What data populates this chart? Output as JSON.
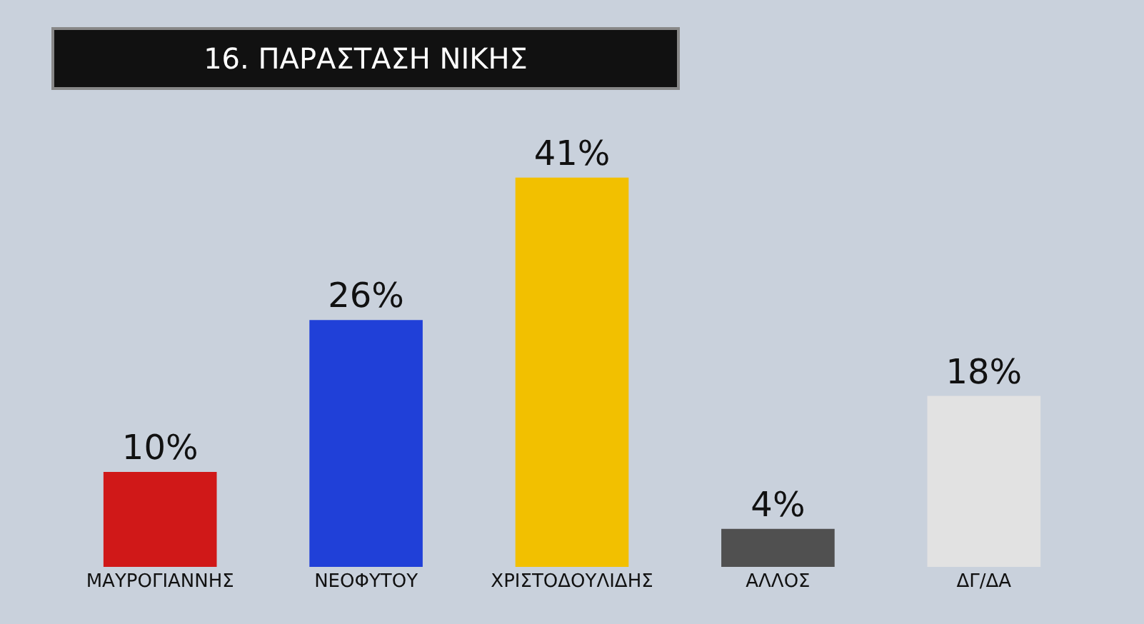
{
  "chart_data": {
    "type": "bar",
    "title": "16. ΠΑΡΑΣΤΑΣΗ ΝΙΚΗΣ",
    "categories": [
      "ΜΑΥΡΟΓΙΑΝΝΗΣ",
      "ΝΕΟΦΥΤΟΥ",
      "ΧΡΙΣΤΟΔΟΥΛΙΔΗΣ",
      "ΑΛΛΟΣ",
      "ΔΓ/ΔΑ"
    ],
    "values": [
      10,
      26,
      41,
      4,
      18
    ],
    "colors": [
      "#d01818",
      "#2040d8",
      "#f2c000",
      "#505050",
      "#e2e2e2"
    ],
    "value_labels": [
      "10%",
      "26%",
      "41%",
      "4%",
      "18%"
    ],
    "legend": false
  }
}
